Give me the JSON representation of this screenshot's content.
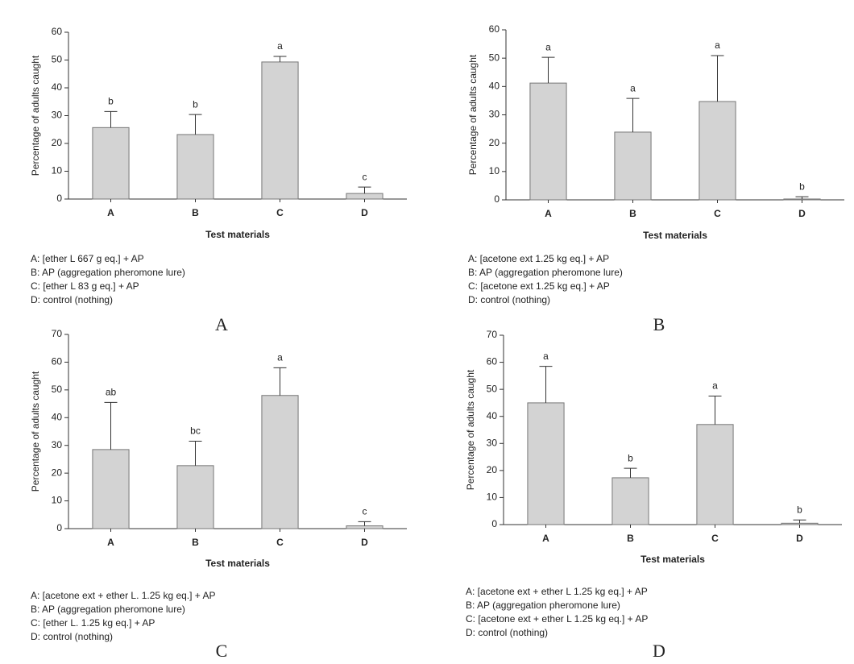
{
  "chart_data": [
    {
      "type": "bar",
      "panel": "A",
      "ylabel": "Percentage of adults caught",
      "xlabel": "Test materials",
      "categories": [
        "A",
        "B",
        "C",
        "D"
      ],
      "values": [
        25.7,
        23.2,
        49.3,
        2.0
      ],
      "errors": [
        5.8,
        7.2,
        2.0,
        2.3
      ],
      "letters": [
        "b",
        "b",
        "a",
        "c"
      ],
      "color": "#d3d3d3",
      "ylim": [
        0,
        60
      ],
      "yticks": [
        0,
        10,
        20,
        30,
        40,
        50,
        60
      ],
      "notes": [
        "A: [ether L 667 g eq.] + AP",
        "B: AP (aggregation pheromone lure)",
        "C: [ether L 83 g eq.] + AP",
        "D: control (nothing)"
      ]
    },
    {
      "type": "bar",
      "panel": "B",
      "ylabel": "Percentage of adults caught",
      "xlabel": "Test materials",
      "categories": [
        "A",
        "B",
        "C",
        "D"
      ],
      "values": [
        41.2,
        23.9,
        34.7,
        0.3
      ],
      "errors": [
        9.1,
        11.9,
        16.2,
        0.8
      ],
      "letters": [
        "a",
        "a",
        "a",
        "b"
      ],
      "color": "#d3d3d3",
      "ylim": [
        0,
        60
      ],
      "yticks": [
        0,
        10,
        20,
        30,
        40,
        50,
        60
      ],
      "notes": [
        "A: [acetone ext 1.25 kg eq.] + AP",
        "B: AP (aggregation pheromone lure)",
        "C: [acetone ext 1.25 kg eq.] + AP",
        "D: control (nothing)"
      ]
    },
    {
      "type": "bar",
      "panel": "C",
      "ylabel": "Percentage of adults caught",
      "xlabel": "Test materials",
      "categories": [
        "A",
        "B",
        "C",
        "D"
      ],
      "values": [
        28.5,
        22.7,
        48.0,
        1.0
      ],
      "errors": [
        17.0,
        8.8,
        10.0,
        1.5
      ],
      "letters": [
        "ab",
        "bc",
        "a",
        "c"
      ],
      "color": "#d3d3d3",
      "ylim": [
        0,
        70
      ],
      "yticks": [
        0,
        10,
        20,
        30,
        40,
        50,
        60,
        70
      ],
      "notes": [
        "A: [acetone ext + ether L. 1.25 kg eq.] + AP",
        "B: AP (aggregation pheromone lure)",
        "C: [ether L. 1.25 kg eq.] + AP",
        "D: control (nothing)"
      ]
    },
    {
      "type": "bar",
      "panel": "D",
      "ylabel": "Percentage of adults caught",
      "xlabel": "Test materials",
      "categories": [
        "A",
        "B",
        "C",
        "D"
      ],
      "values": [
        45.0,
        17.3,
        37.0,
        0.5
      ],
      "errors": [
        13.5,
        3.5,
        10.5,
        1.2
      ],
      "letters": [
        "a",
        "b",
        "a",
        "b"
      ],
      "color": "#d3d3d3",
      "ylim": [
        0,
        70
      ],
      "yticks": [
        0,
        10,
        20,
        30,
        40,
        50,
        60,
        70
      ],
      "notes": [
        "A: [acetone ext + ether L 1.25 kg eq.] + AP",
        "B: AP (aggregation pheromone lure)",
        "C: [acetone ext + ether L 1.25 kg eq.] + AP",
        "D: control (nothing)"
      ]
    }
  ]
}
